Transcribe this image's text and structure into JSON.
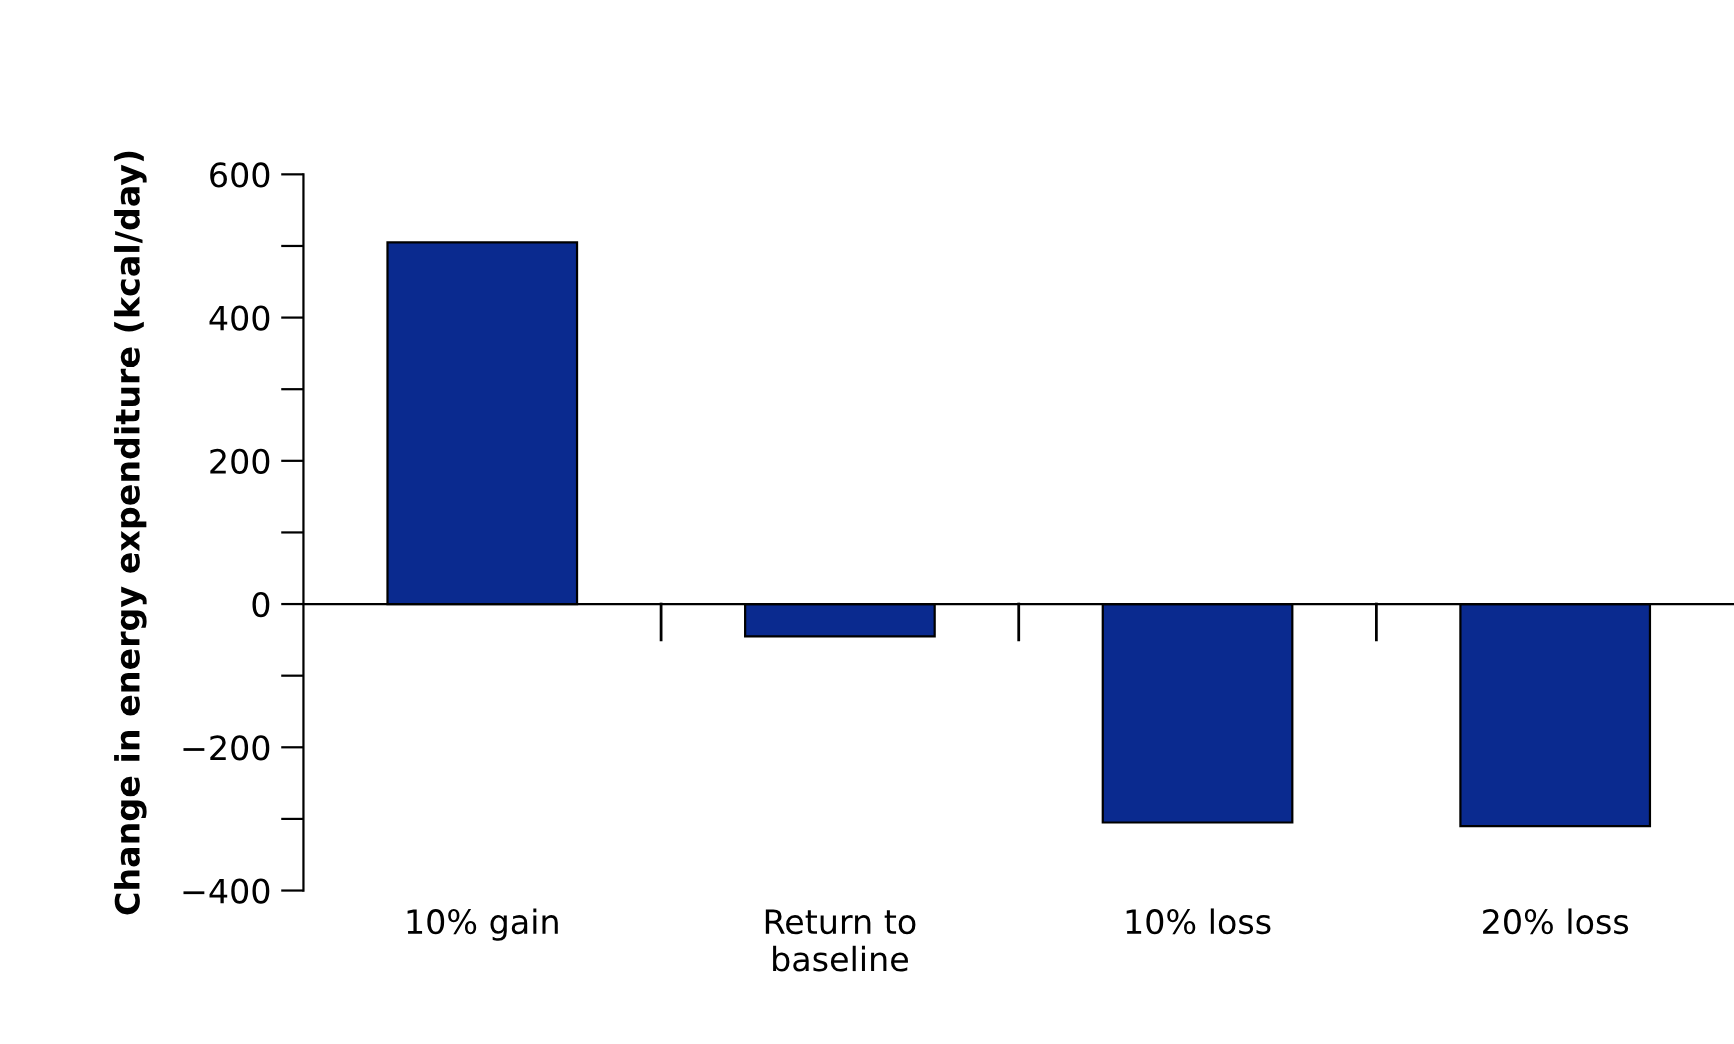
{
  "chart_data": {
    "type": "bar",
    "ylabel": "Change in energy expenditure (kcal/day)",
    "categories": [
      "10% gain",
      "Return to\nbaseline",
      "10% loss",
      "20% loss"
    ],
    "values": [
      505,
      -45,
      -305,
      -310
    ],
    "color": "#0a2a8f",
    "ylim": [
      -400,
      600
    ],
    "yticks": [
      -400,
      {
        "value": -300,
        "label": null
      },
      -200,
      {
        "value": -100,
        "label": null
      },
      0,
      {
        "value": 100,
        "label": null
      },
      200,
      {
        "value": 300,
        "label": null
      },
      400,
      {
        "value": 500,
        "label": null
      },
      600
    ]
  }
}
